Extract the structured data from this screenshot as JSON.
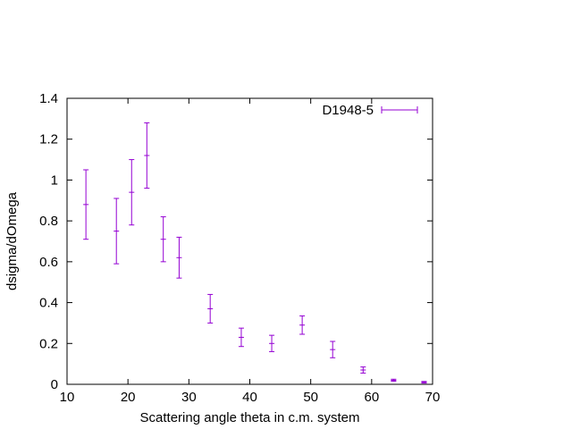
{
  "chart_data": {
    "type": "scatter",
    "title": "",
    "xlabel": "Scattering angle theta in c.m. system",
    "ylabel": "dsigma/dOmega",
    "xlim": [
      10,
      70
    ],
    "ylim": [
      0,
      1.4
    ],
    "xticks": [
      "10",
      "20",
      "30",
      "40",
      "50",
      "60",
      "70"
    ],
    "yticks": [
      "0",
      "0.2",
      "0.4",
      "0.6",
      "0.8",
      "1",
      "1.2",
      "1.4"
    ],
    "xtick_values": [
      10,
      20,
      30,
      40,
      50,
      60,
      70
    ],
    "ytick_values": [
      0,
      0.2,
      0.4,
      0.6,
      0.8,
      1.0,
      1.2,
      1.4
    ],
    "grid": false,
    "legend_position": "top-right",
    "series": [
      {
        "name": "D1948-5",
        "color": "#9400d3",
        "x": [
          13.1,
          18.1,
          20.6,
          23.1,
          25.8,
          28.4,
          33.5,
          38.6,
          43.6,
          48.6,
          53.6,
          58.6,
          63.6,
          68.6
        ],
        "y": [
          0.88,
          0.75,
          0.94,
          1.12,
          0.71,
          0.62,
          0.37,
          0.23,
          0.2,
          0.29,
          0.17,
          0.07,
          0.02,
          0.01
        ],
        "yerr": [
          0.17,
          0.16,
          0.16,
          0.16,
          0.11,
          0.1,
          0.07,
          0.045,
          0.04,
          0.045,
          0.04,
          0.015,
          0.005,
          0.004
        ]
      }
    ]
  }
}
